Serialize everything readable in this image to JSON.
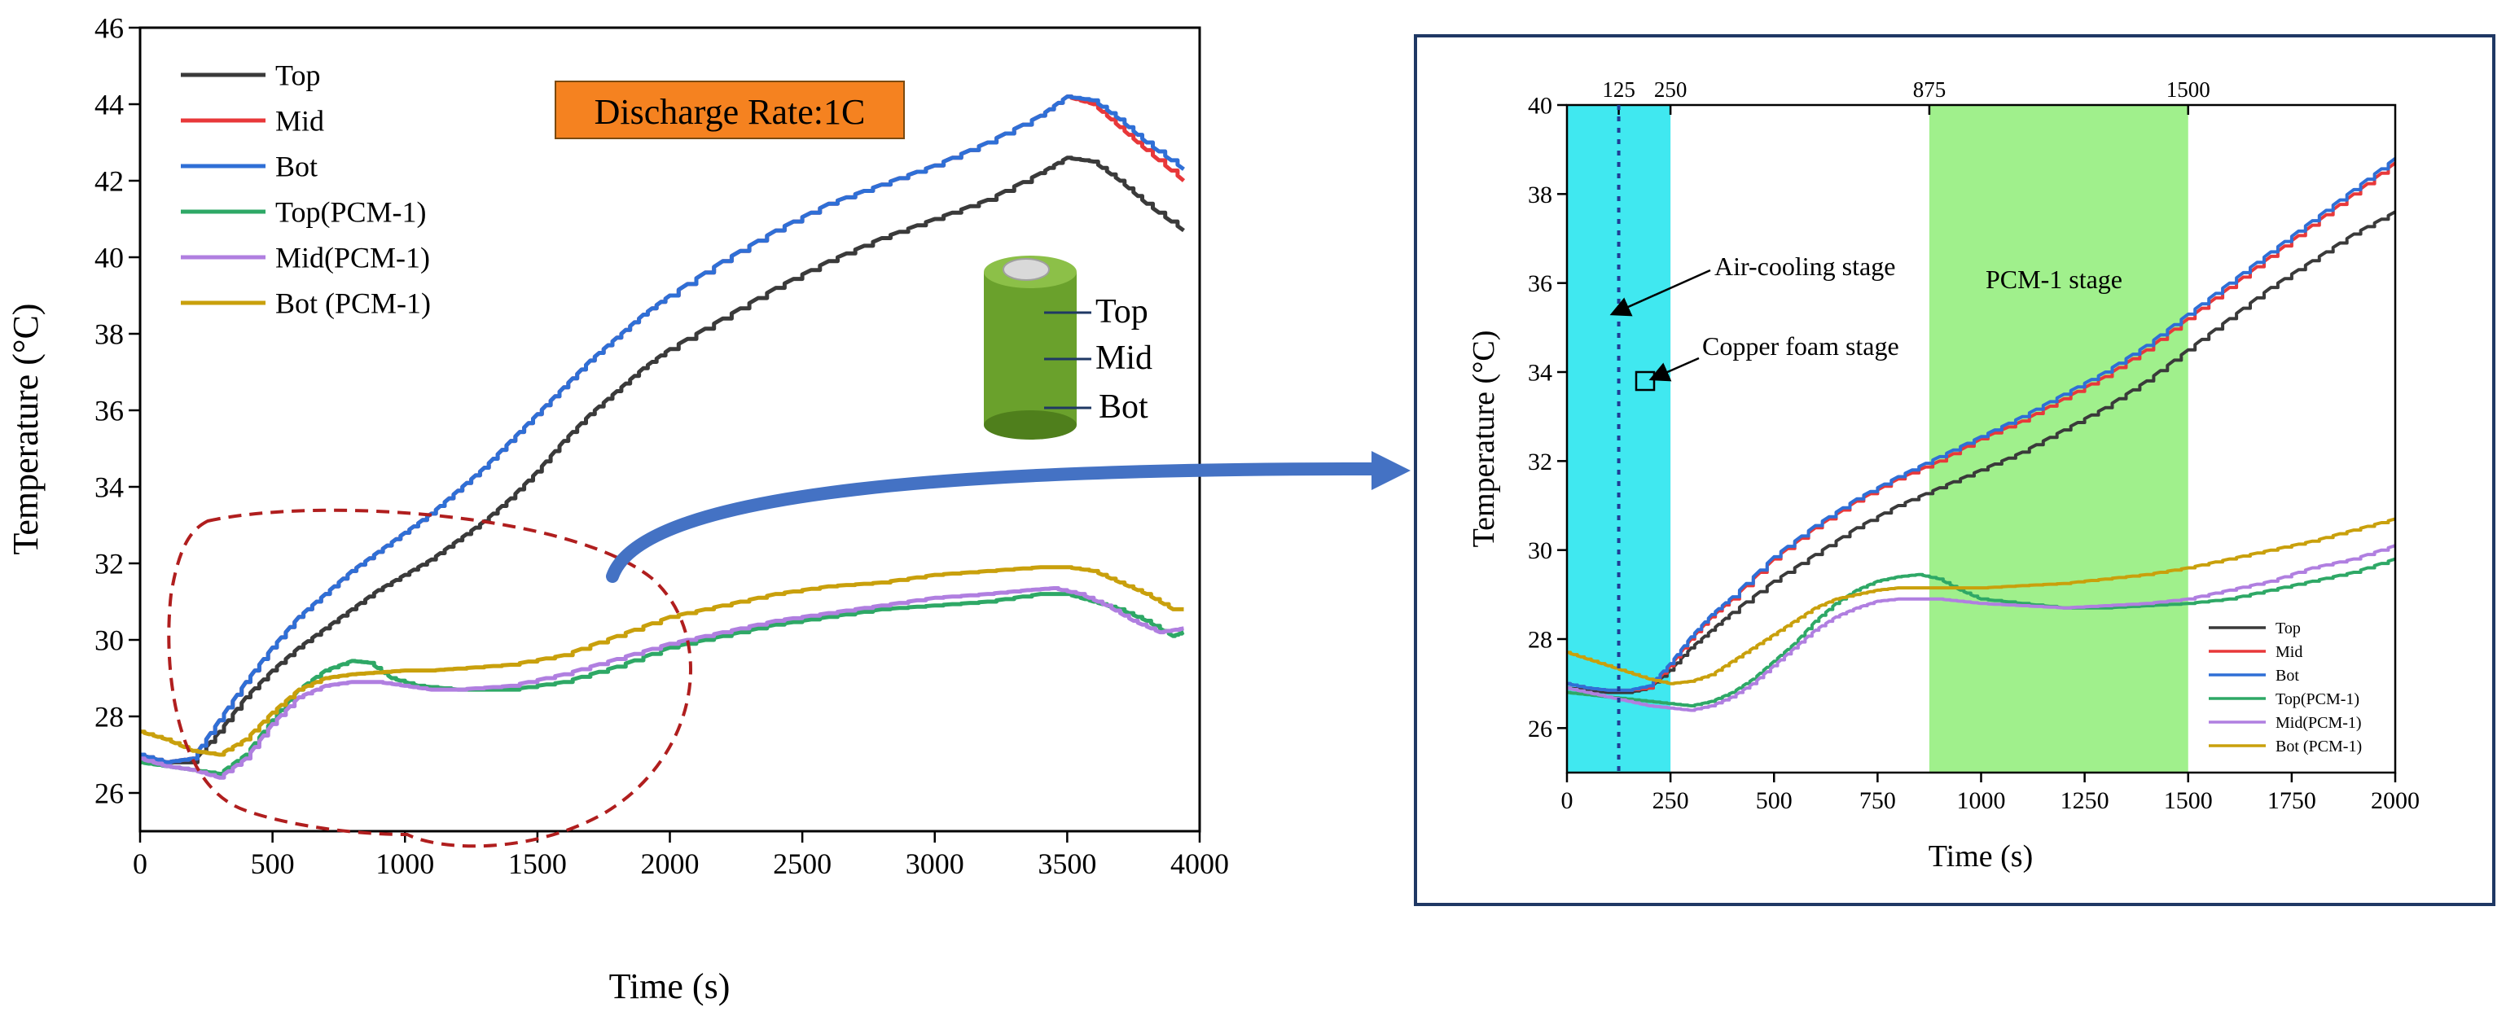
{
  "colors": {
    "top": "#3a3a3a",
    "mid": "#e8383a",
    "bot": "#2f6fd6",
    "top_pcm": "#2ea866",
    "mid_pcm": "#b07fe0",
    "bot_pcm": "#c9a00c",
    "badge_bg": "#f58220",
    "ellipse": "#b01e1e",
    "arrow": "#4472c4",
    "panel_border": "#1f3864",
    "air_band": "#40e8f0",
    "pcm_band": "#a0f08c",
    "battery_body": "#6aa12c",
    "battery_cap": "#cfcfcf"
  },
  "chart_data": [
    {
      "type": "line",
      "title": "",
      "xlabel": "Time (s)",
      "ylabel": "Temperature (°C)",
      "xlim": [
        0,
        4000
      ],
      "ylim": [
        25,
        46
      ],
      "xticks": [
        0,
        500,
        1000,
        1500,
        2000,
        2500,
        3000,
        3500,
        4000
      ],
      "yticks": [
        26,
        28,
        30,
        32,
        34,
        36,
        38,
        40,
        42,
        44,
        46
      ],
      "badge": "Discharge Rate:1C",
      "battery_labels": [
        "Top",
        "Mid",
        "Bot"
      ],
      "legend_position": "top-left",
      "series": [
        {
          "name": "Top",
          "key": "top",
          "x": [
            0,
            100,
            200,
            300,
            400,
            500,
            600,
            700,
            800,
            900,
            1000,
            1100,
            1200,
            1300,
            1400,
            1500,
            1600,
            1700,
            1800,
            1900,
            2000,
            2200,
            2400,
            2600,
            2800,
            3000,
            3200,
            3400,
            3500,
            3600,
            3700,
            3800,
            3940
          ],
          "y": [
            26.9,
            26.8,
            26.8,
            27.6,
            28.5,
            29.2,
            29.8,
            30.3,
            30.8,
            31.3,
            31.7,
            32.1,
            32.6,
            33.1,
            33.7,
            34.4,
            35.2,
            35.9,
            36.5,
            37.1,
            37.6,
            38.4,
            39.2,
            39.9,
            40.5,
            41.0,
            41.5,
            42.2,
            42.6,
            42.5,
            42.0,
            41.4,
            40.7
          ]
        },
        {
          "name": "Mid",
          "key": "mid",
          "x": [
            0,
            100,
            200,
            300,
            400,
            500,
            600,
            700,
            800,
            900,
            1000,
            1100,
            1200,
            1300,
            1400,
            1500,
            1600,
            1700,
            1800,
            1900,
            2000,
            2200,
            2400,
            2600,
            2800,
            3000,
            3200,
            3400,
            3500,
            3600,
            3700,
            3800,
            3940
          ],
          "y": [
            27.0,
            26.8,
            26.9,
            27.9,
            28.9,
            29.8,
            30.6,
            31.2,
            31.8,
            32.3,
            32.8,
            33.3,
            33.9,
            34.5,
            35.2,
            35.9,
            36.6,
            37.3,
            37.9,
            38.5,
            39.0,
            39.9,
            40.7,
            41.4,
            41.9,
            42.4,
            43.0,
            43.7,
            44.2,
            44.0,
            43.4,
            42.8,
            42.0
          ]
        },
        {
          "name": "Bot",
          "key": "bot",
          "x": [
            0,
            100,
            200,
            300,
            400,
            500,
            600,
            700,
            800,
            900,
            1000,
            1100,
            1200,
            1300,
            1400,
            1500,
            1600,
            1700,
            1800,
            1900,
            2000,
            2200,
            2400,
            2600,
            2800,
            3000,
            3200,
            3400,
            3500,
            3600,
            3700,
            3800,
            3940
          ],
          "y": [
            27.0,
            26.8,
            26.9,
            27.9,
            28.9,
            29.8,
            30.6,
            31.2,
            31.8,
            32.3,
            32.8,
            33.3,
            33.9,
            34.5,
            35.2,
            35.9,
            36.6,
            37.3,
            37.9,
            38.5,
            39.0,
            39.9,
            40.7,
            41.4,
            41.9,
            42.4,
            43.0,
            43.7,
            44.2,
            44.1,
            43.6,
            43.0,
            42.3
          ]
        },
        {
          "name": "Top(PCM-1)",
          "key": "top_pcm",
          "x": [
            0,
            100,
            200,
            300,
            400,
            500,
            600,
            700,
            800,
            870,
            950,
            1050,
            1200,
            1400,
            1600,
            1800,
            2000,
            2200,
            2400,
            2600,
            2800,
            3000,
            3200,
            3400,
            3500,
            3600,
            3700,
            3800,
            3900,
            3940
          ],
          "y": [
            26.8,
            26.7,
            26.6,
            26.5,
            27.0,
            27.9,
            28.7,
            29.2,
            29.45,
            29.4,
            29.0,
            28.8,
            28.7,
            28.7,
            28.9,
            29.3,
            29.8,
            30.1,
            30.4,
            30.6,
            30.8,
            30.9,
            31.0,
            31.2,
            31.2,
            31.0,
            30.8,
            30.5,
            30.1,
            30.2
          ]
        },
        {
          "name": "Mid(PCM-1)",
          "key": "mid_pcm",
          "x": [
            0,
            100,
            200,
            300,
            400,
            500,
            600,
            700,
            800,
            900,
            1000,
            1100,
            1200,
            1400,
            1600,
            1800,
            2000,
            2200,
            2400,
            2600,
            2800,
            3000,
            3200,
            3350,
            3450,
            3550,
            3650,
            3750,
            3850,
            3940
          ],
          "y": [
            26.9,
            26.7,
            26.6,
            26.4,
            26.9,
            27.8,
            28.5,
            28.8,
            28.9,
            28.9,
            28.8,
            28.7,
            28.7,
            28.8,
            29.1,
            29.5,
            29.9,
            30.2,
            30.5,
            30.7,
            30.9,
            31.1,
            31.2,
            31.3,
            31.35,
            31.2,
            30.9,
            30.5,
            30.2,
            30.3
          ]
        },
        {
          "name": "Bot (PCM-1)",
          "key": "bot_pcm",
          "x": [
            0,
            100,
            200,
            300,
            400,
            500,
            600,
            700,
            800,
            900,
            1000,
            1100,
            1200,
            1400,
            1600,
            1800,
            2000,
            2200,
            2400,
            2600,
            2800,
            3000,
            3200,
            3400,
            3500,
            3600,
            3700,
            3800,
            3900,
            3940
          ],
          "y": [
            27.6,
            27.4,
            27.1,
            27.0,
            27.4,
            28.1,
            28.7,
            29.0,
            29.1,
            29.15,
            29.2,
            29.2,
            29.25,
            29.35,
            29.6,
            30.1,
            30.6,
            30.9,
            31.2,
            31.4,
            31.5,
            31.7,
            31.8,
            31.9,
            31.9,
            31.8,
            31.5,
            31.2,
            30.8,
            30.8
          ]
        }
      ]
    },
    {
      "type": "line",
      "title": "",
      "xlabel": "Time (s)",
      "ylabel": "Temperature (°C)",
      "xlim": [
        0,
        2000
      ],
      "ylim": [
        25,
        40
      ],
      "xticks": [
        0,
        250,
        500,
        750,
        1000,
        1250,
        1500,
        1750,
        2000
      ],
      "yticks": [
        26,
        28,
        30,
        32,
        34,
        36,
        38,
        40
      ],
      "top_ticks": [
        125,
        250,
        875,
        1500
      ],
      "bands": [
        {
          "label": "",
          "from": 0,
          "to": 250,
          "key": "air_band"
        },
        {
          "label": "PCM-1 stage",
          "from": 875,
          "to": 1500,
          "key": "pcm_band"
        }
      ],
      "annotations": [
        "Air-cooling stage",
        "Copper foam stage"
      ],
      "legend_position": "bottom-right",
      "series": [
        {
          "name": "Top",
          "key": "top",
          "x": [
            0,
            50,
            100,
            150,
            200,
            250,
            300,
            350,
            400,
            500,
            600,
            700,
            800,
            900,
            1000,
            1100,
            1200,
            1300,
            1400,
            1500,
            1600,
            1700,
            1800,
            1900,
            2000
          ],
          "y": [
            26.9,
            26.85,
            26.8,
            26.8,
            26.9,
            27.3,
            27.8,
            28.2,
            28.6,
            29.3,
            29.9,
            30.5,
            31.0,
            31.4,
            31.8,
            32.2,
            32.7,
            33.2,
            33.8,
            34.5,
            35.2,
            35.9,
            36.5,
            37.1,
            37.6
          ]
        },
        {
          "name": "Mid",
          "key": "mid",
          "x": [
            0,
            50,
            100,
            150,
            200,
            250,
            300,
            350,
            400,
            500,
            600,
            700,
            800,
            900,
            1000,
            1100,
            1200,
            1300,
            1400,
            1500,
            1600,
            1700,
            1800,
            1900,
            2000
          ],
          "y": [
            27.0,
            26.9,
            26.85,
            26.85,
            26.9,
            27.4,
            28.0,
            28.5,
            28.9,
            29.8,
            30.5,
            31.1,
            31.6,
            32.0,
            32.5,
            32.9,
            33.4,
            33.9,
            34.5,
            35.2,
            35.9,
            36.6,
            37.3,
            38.0,
            38.7
          ]
        },
        {
          "name": "Bot",
          "key": "bot",
          "x": [
            0,
            50,
            100,
            150,
            200,
            250,
            300,
            350,
            400,
            500,
            600,
            700,
            800,
            900,
            1000,
            1100,
            1200,
            1300,
            1400,
            1500,
            1600,
            1700,
            1800,
            1900,
            2000
          ],
          "y": [
            27.0,
            26.9,
            26.85,
            26.85,
            26.95,
            27.45,
            28.05,
            28.55,
            28.95,
            29.85,
            30.55,
            31.15,
            31.65,
            32.1,
            32.55,
            33.0,
            33.5,
            34.0,
            34.6,
            35.3,
            36.0,
            36.7,
            37.4,
            38.1,
            38.8
          ]
        },
        {
          "name": "Top(PCM-1)",
          "key": "top_pcm",
          "x": [
            0,
            50,
            100,
            150,
            200,
            250,
            300,
            350,
            400,
            450,
            500,
            550,
            600,
            650,
            700,
            750,
            800,
            850,
            900,
            950,
            1000,
            1100,
            1200,
            1300,
            1400,
            1500,
            1600,
            1700,
            1800,
            1900,
            2000
          ],
          "y": [
            26.8,
            26.75,
            26.7,
            26.65,
            26.6,
            26.55,
            26.5,
            26.6,
            26.8,
            27.1,
            27.5,
            27.9,
            28.4,
            28.8,
            29.1,
            29.3,
            29.4,
            29.45,
            29.35,
            29.1,
            28.9,
            28.8,
            28.7,
            28.7,
            28.75,
            28.8,
            28.9,
            29.1,
            29.3,
            29.5,
            29.8
          ]
        },
        {
          "name": "Mid(PCM-1)",
          "key": "mid_pcm",
          "x": [
            0,
            50,
            100,
            150,
            200,
            250,
            300,
            350,
            400,
            450,
            500,
            550,
            600,
            650,
            700,
            750,
            800,
            850,
            900,
            950,
            1000,
            1100,
            1200,
            1300,
            1400,
            1500,
            1600,
            1700,
            1800,
            1900,
            2000
          ],
          "y": [
            26.9,
            26.8,
            26.7,
            26.6,
            26.5,
            26.45,
            26.4,
            26.5,
            26.7,
            27.0,
            27.4,
            27.8,
            28.2,
            28.5,
            28.7,
            28.85,
            28.9,
            28.9,
            28.9,
            28.85,
            28.8,
            28.75,
            28.7,
            28.75,
            28.8,
            28.9,
            29.1,
            29.3,
            29.6,
            29.8,
            30.1
          ]
        },
        {
          "name": "Bot (PCM-1)",
          "key": "bot_pcm",
          "x": [
            0,
            50,
            100,
            150,
            200,
            250,
            300,
            350,
            400,
            450,
            500,
            550,
            600,
            650,
            700,
            750,
            800,
            850,
            900,
            950,
            1000,
            1100,
            1200,
            1300,
            1400,
            1500,
            1600,
            1700,
            1800,
            1900,
            2000
          ],
          "y": [
            27.7,
            27.55,
            27.4,
            27.25,
            27.1,
            27.0,
            27.05,
            27.2,
            27.5,
            27.8,
            28.1,
            28.4,
            28.7,
            28.9,
            29.0,
            29.1,
            29.15,
            29.15,
            29.15,
            29.15,
            29.15,
            29.2,
            29.25,
            29.35,
            29.45,
            29.6,
            29.8,
            30.0,
            30.2,
            30.45,
            30.7
          ]
        }
      ]
    }
  ]
}
